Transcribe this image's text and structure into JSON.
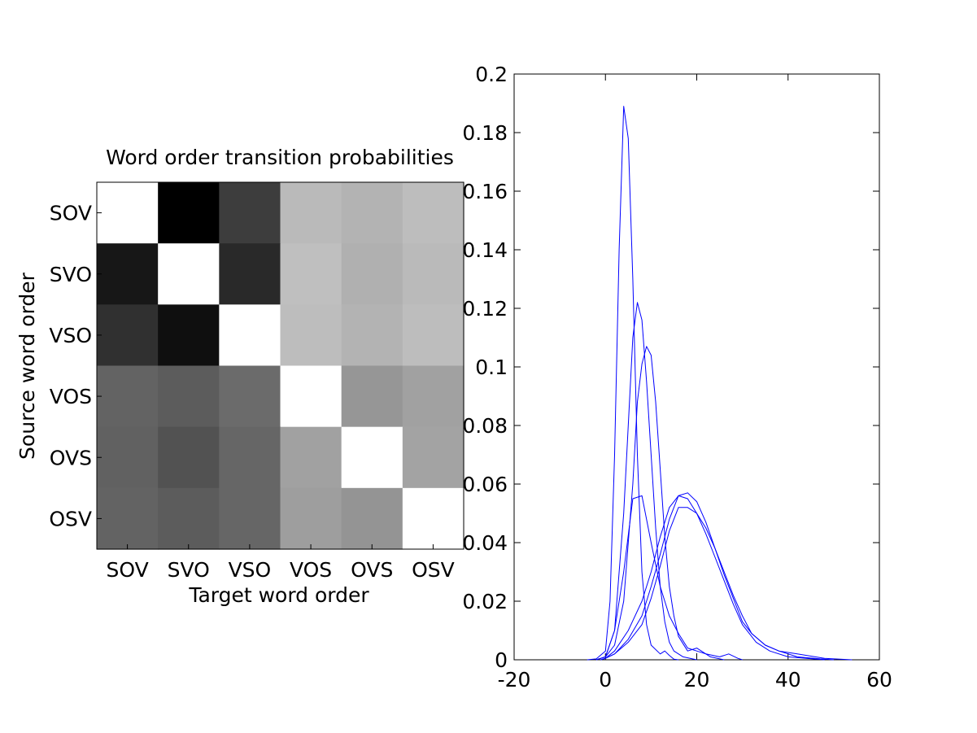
{
  "chart_data": [
    {
      "type": "heatmap",
      "title": "Word order transition probabilities",
      "xlabel": "Target word order",
      "ylabel": "Source word order",
      "categories_x": [
        "SOV",
        "SVO",
        "VSO",
        "VOS",
        "OVS",
        "OSV"
      ],
      "categories_y": [
        "SOV",
        "SVO",
        "VSO",
        "VOS",
        "OVS",
        "OSV"
      ],
      "colormap": "gray",
      "values": [
        [
          1.0,
          0.0,
          0.24,
          0.73,
          0.7,
          0.74
        ],
        [
          0.09,
          1.0,
          0.16,
          0.75,
          0.69,
          0.73
        ],
        [
          0.19,
          0.06,
          1.0,
          0.74,
          0.7,
          0.74
        ],
        [
          0.39,
          0.36,
          0.42,
          1.0,
          0.59,
          0.63
        ],
        [
          0.38,
          0.32,
          0.4,
          0.63,
          1.0,
          0.64
        ],
        [
          0.39,
          0.36,
          0.4,
          0.62,
          0.58,
          1.0
        ]
      ]
    },
    {
      "type": "line",
      "line_color": "#0000ff",
      "xlim": [
        -20,
        60
      ],
      "ylim": [
        0,
        0.2
      ],
      "xticks": [
        "-20",
        "0",
        "20",
        "40",
        "60"
      ],
      "yticks": [
        "0",
        "0.02",
        "0.04",
        "0.06",
        "0.08",
        "0.1",
        "0.12",
        "0.14",
        "0.16",
        "0.18",
        "0.2"
      ],
      "grid": false,
      "series": [
        {
          "points": [
            [
              -4,
              0
            ],
            [
              -2,
              0.0003
            ],
            [
              0,
              0.003
            ],
            [
              1,
              0.02
            ],
            [
              2,
              0.07
            ],
            [
              3,
              0.14
            ],
            [
              4,
              0.189
            ],
            [
              5,
              0.178
            ],
            [
              6,
              0.13
            ],
            [
              7,
              0.07
            ],
            [
              8,
              0.03
            ],
            [
              9,
              0.012
            ],
            [
              10,
              0.005
            ],
            [
              12,
              0.002
            ],
            [
              13,
              0.003
            ],
            [
              14,
              0.0015
            ],
            [
              15,
              0.0002
            ],
            [
              16,
              0
            ]
          ]
        },
        {
          "points": [
            [
              -2,
              0
            ],
            [
              0,
              0.001
            ],
            [
              2,
              0.01
            ],
            [
              4,
              0.05
            ],
            [
              5,
              0.08
            ],
            [
              6,
              0.11
            ],
            [
              7,
              0.122
            ],
            [
              8,
              0.116
            ],
            [
              9,
              0.095
            ],
            [
              10,
              0.07
            ],
            [
              11,
              0.045
            ],
            [
              12,
              0.025
            ],
            [
              13,
              0.013
            ],
            [
              14,
              0.006
            ],
            [
              15,
              0.003
            ],
            [
              17,
              0.001
            ],
            [
              20,
              0
            ]
          ]
        },
        {
          "points": [
            [
              -2,
              0
            ],
            [
              0,
              0.001
            ],
            [
              2,
              0.005
            ],
            [
              4,
              0.02
            ],
            [
              6,
              0.06
            ],
            [
              7,
              0.088
            ],
            [
              8,
              0.101
            ],
            [
              9,
              0.107
            ],
            [
              10,
              0.104
            ],
            [
              11,
              0.088
            ],
            [
              12,
              0.065
            ],
            [
              13,
              0.042
            ],
            [
              14,
              0.025
            ],
            [
              15,
              0.015
            ],
            [
              16,
              0.008
            ],
            [
              18,
              0.003
            ],
            [
              20,
              0.004
            ],
            [
              21,
              0.003
            ],
            [
              23,
              0.001
            ],
            [
              26,
              0
            ]
          ]
        },
        {
          "points": [
            [
              -1,
              0
            ],
            [
              0,
              0.0005
            ],
            [
              2,
              0.002
            ],
            [
              5,
              0.007
            ],
            [
              8,
              0.015
            ],
            [
              10,
              0.025
            ],
            [
              12,
              0.036
            ],
            [
              14,
              0.048
            ],
            [
              16,
              0.056
            ],
            [
              18,
              0.057
            ],
            [
              20,
              0.054
            ],
            [
              22,
              0.047
            ],
            [
              24,
              0.038
            ],
            [
              26,
              0.029
            ],
            [
              28,
              0.021
            ],
            [
              30,
              0.013
            ],
            [
              32,
              0.009
            ],
            [
              35,
              0.005
            ],
            [
              38,
              0.003
            ],
            [
              42,
              0.001
            ],
            [
              47,
              0.0003
            ],
            [
              50,
              0
            ]
          ]
        },
        {
          "points": [
            [
              -1,
              0
            ],
            [
              0,
              0.0005
            ],
            [
              2,
              0.002
            ],
            [
              5,
              0.006
            ],
            [
              8,
              0.012
            ],
            [
              10,
              0.021
            ],
            [
              12,
              0.032
            ],
            [
              14,
              0.044
            ],
            [
              16,
              0.052
            ],
            [
              18,
              0.052
            ],
            [
              20,
              0.05
            ],
            [
              22,
              0.045
            ],
            [
              24,
              0.038
            ],
            [
              26,
              0.03
            ],
            [
              28,
              0.022
            ],
            [
              30,
              0.015
            ],
            [
              32,
              0.009
            ],
            [
              35,
              0.005
            ],
            [
              38,
              0.003
            ],
            [
              42,
              0.002
            ],
            [
              48,
              0.0005
            ],
            [
              54,
              0
            ]
          ]
        },
        {
          "points": [
            [
              -1,
              0
            ],
            [
              0,
              0.0005
            ],
            [
              2,
              0.003
            ],
            [
              5,
              0.01
            ],
            [
              8,
              0.02
            ],
            [
              10,
              0.03
            ],
            [
              12,
              0.042
            ],
            [
              14,
              0.052
            ],
            [
              16,
              0.056
            ],
            [
              18,
              0.055
            ],
            [
              20,
              0.05
            ],
            [
              22,
              0.043
            ],
            [
              24,
              0.035
            ],
            [
              26,
              0.027
            ],
            [
              28,
              0.019
            ],
            [
              30,
              0.012
            ],
            [
              33,
              0.006
            ],
            [
              36,
              0.003
            ],
            [
              40,
              0.001
            ],
            [
              44,
              0.0005
            ],
            [
              48,
              0
            ]
          ]
        },
        {
          "points": [
            [
              -2,
              0
            ],
            [
              0,
              0.001
            ],
            [
              2,
              0.01
            ],
            [
              4,
              0.03
            ],
            [
              6,
              0.055
            ],
            [
              8,
              0.056
            ],
            [
              10,
              0.04
            ],
            [
              12,
              0.025
            ],
            [
              14,
              0.015
            ],
            [
              16,
              0.009
            ],
            [
              18,
              0.004
            ],
            [
              20,
              0.003
            ],
            [
              22,
              0.002
            ],
            [
              25,
              0.001
            ],
            [
              27,
              0.002
            ],
            [
              29,
              0.0005
            ],
            [
              30,
              0
            ]
          ]
        }
      ]
    }
  ]
}
